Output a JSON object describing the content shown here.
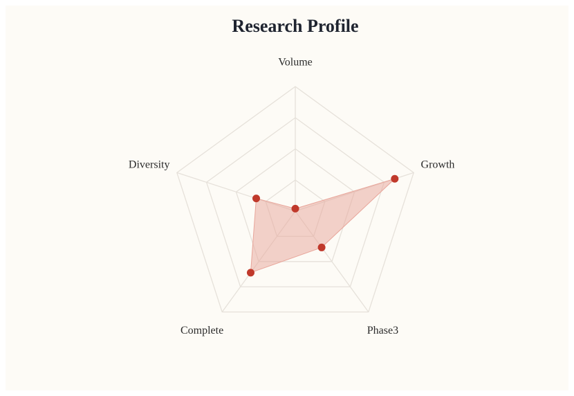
{
  "chart_data": {
    "type": "radar",
    "title": "Research Profile",
    "categories": [
      "Volume",
      "Growth",
      "Phase3",
      "Complete",
      "Diversity"
    ],
    "values": [
      2,
      84,
      36,
      61,
      33
    ],
    "color": "#c0392b",
    "fill_color": "#e8a59a",
    "ylim": [
      0,
      100
    ],
    "yticks": [
      25,
      50,
      75,
      100
    ],
    "grid": true
  }
}
